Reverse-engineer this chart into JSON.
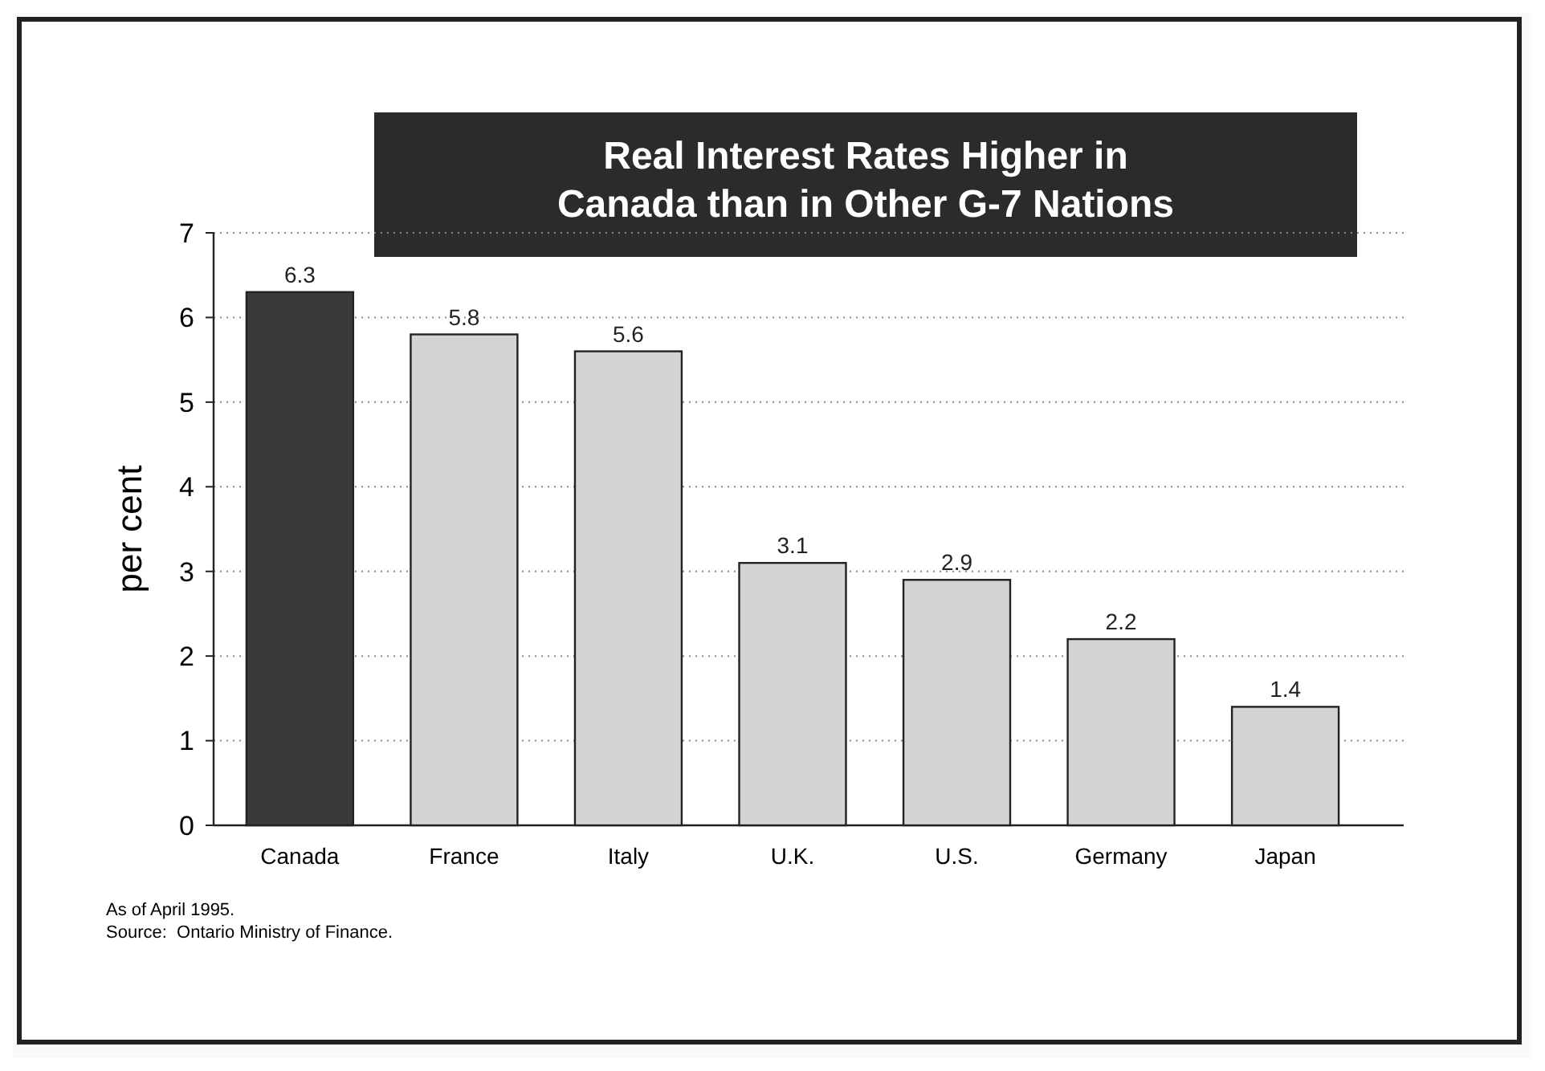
{
  "chart_data": {
    "type": "bar",
    "title": "Real Interest Rates Higher in\nCanada than in Other G-7 Nations",
    "ylabel": "per cent",
    "categories": [
      "Canada",
      "France",
      "Italy",
      "U.K.",
      "U.S.",
      "Germany",
      "Japan"
    ],
    "values": [
      6.3,
      5.8,
      5.6,
      3.1,
      2.9,
      2.2,
      1.4
    ],
    "colors": [
      "#3a3a3a",
      "#d4d4d4",
      "#d4d4d4",
      "#d4d4d4",
      "#d4d4d4",
      "#d4d4d4",
      "#d4d4d4"
    ],
    "ylim": [
      0,
      7
    ],
    "yticks": [
      0,
      1,
      2,
      3,
      4,
      5,
      6,
      7
    ],
    "grid": "y",
    "data_labels": true,
    "annotations": [
      "As of April 1995.",
      "Source:  Ontario Ministry of Finance."
    ]
  }
}
